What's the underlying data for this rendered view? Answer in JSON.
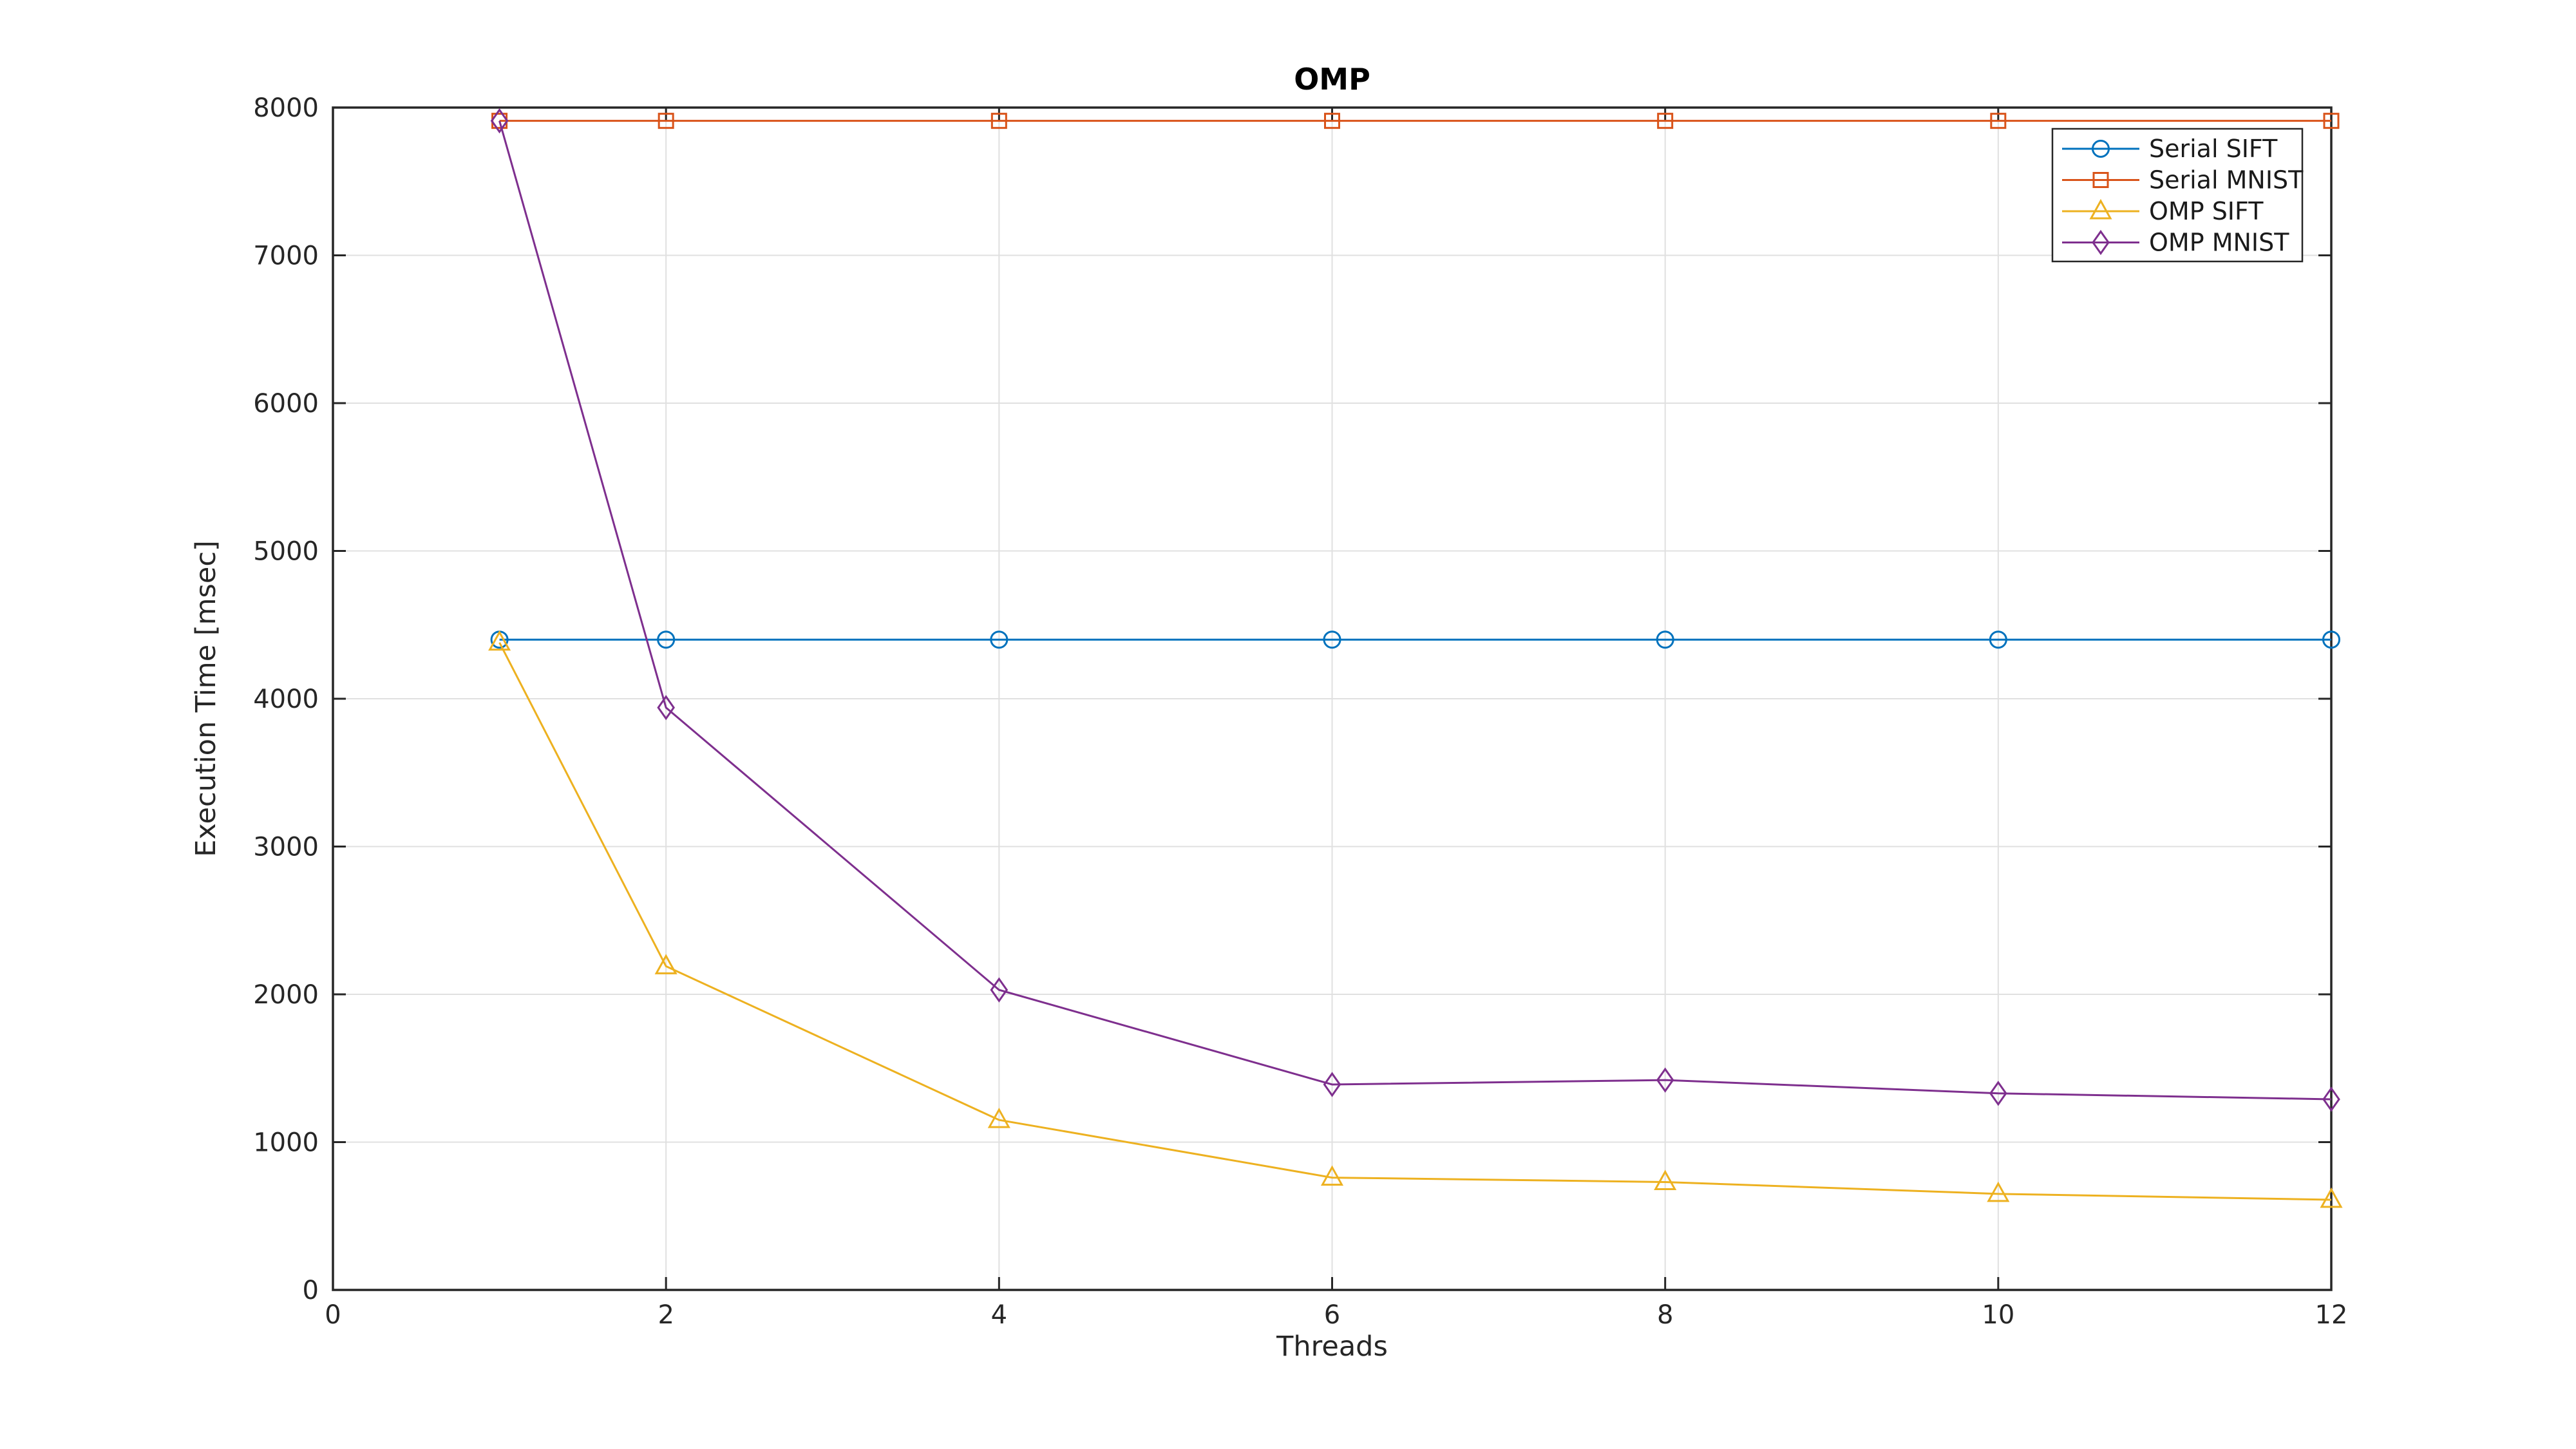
{
  "figure": {
    "title": "OMP"
  },
  "chart_data": {
    "type": "line",
    "title": "OMP",
    "xlabel": "Threads",
    "ylabel": "Execution Time [msec]",
    "xlim": [
      0,
      12
    ],
    "ylim": [
      0,
      8000
    ],
    "x_ticks": [
      0,
      2,
      4,
      6,
      8,
      10,
      12
    ],
    "y_ticks": [
      0,
      1000,
      2000,
      3000,
      4000,
      5000,
      6000,
      7000,
      8000
    ],
    "grid": true,
    "legend_position": "top-right",
    "x": [
      1,
      2,
      4,
      6,
      8,
      10,
      12
    ],
    "series": [
      {
        "name": "Serial SIFT",
        "color": "#0072BD",
        "marker": "circle",
        "values": [
          4400,
          4400,
          4400,
          4400,
          4400,
          4400,
          4400
        ]
      },
      {
        "name": "Serial MNIST",
        "color": "#D95319",
        "marker": "square",
        "values": [
          7910,
          7910,
          7910,
          7910,
          7910,
          7910,
          7910
        ]
      },
      {
        "name": "OMP SIFT",
        "color": "#EDB120",
        "marker": "triangle",
        "values": [
          4380,
          2190,
          1150,
          760,
          730,
          650,
          610
        ]
      },
      {
        "name": "OMP MNIST",
        "color": "#7E2F8E",
        "marker": "diamond",
        "values": [
          7910,
          3940,
          2030,
          1390,
          1420,
          1330,
          1290
        ]
      }
    ],
    "axis_color": "#262626",
    "grid_color": "#E0E0E0",
    "background_color": "#FFFFFF"
  }
}
